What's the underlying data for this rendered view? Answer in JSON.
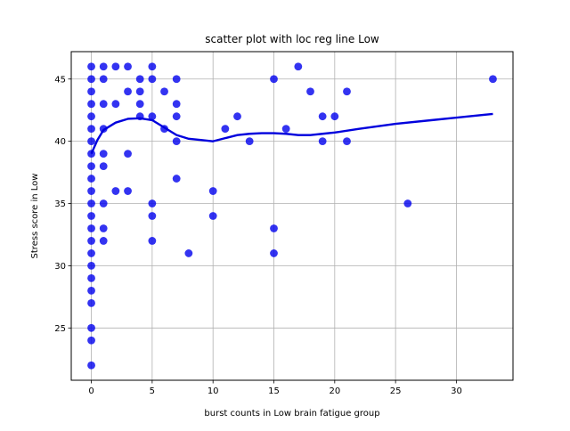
{
  "chart_data": {
    "type": "scatter",
    "title": "scatter plot with loc reg line Low",
    "xlabel": "burst counts in Low brain fatigue group",
    "ylabel": "Stress score in Low",
    "xlim": [
      -1.65,
      34.65
    ],
    "ylim": [
      20.8,
      47.2
    ],
    "xticks": [
      0,
      5,
      10,
      15,
      20,
      25,
      30
    ],
    "yticks": [
      25,
      30,
      35,
      40,
      45
    ],
    "grid": true,
    "colors": {
      "points": "#0000ee",
      "line": "#0000dd",
      "grid": "#b0b0b0"
    },
    "points": [
      [
        0,
        22
      ],
      [
        0,
        24
      ],
      [
        0,
        25
      ],
      [
        0,
        27
      ],
      [
        0,
        28
      ],
      [
        0,
        29
      ],
      [
        0,
        30
      ],
      [
        0,
        31
      ],
      [
        0,
        32
      ],
      [
        0,
        33
      ],
      [
        0,
        34
      ],
      [
        0,
        35
      ],
      [
        0,
        36
      ],
      [
        0,
        37
      ],
      [
        0,
        38
      ],
      [
        0,
        39
      ],
      [
        0,
        40
      ],
      [
        0,
        41
      ],
      [
        0,
        42
      ],
      [
        0,
        43
      ],
      [
        0,
        44
      ],
      [
        0,
        45
      ],
      [
        0,
        46
      ],
      [
        1,
        32
      ],
      [
        1,
        33
      ],
      [
        1,
        35
      ],
      [
        1,
        38
      ],
      [
        1,
        39
      ],
      [
        1,
        41
      ],
      [
        1,
        43
      ],
      [
        1,
        45
      ],
      [
        1,
        46
      ],
      [
        2,
        36
      ],
      [
        2,
        43
      ],
      [
        2,
        46
      ],
      [
        3,
        36
      ],
      [
        3,
        39
      ],
      [
        3,
        44
      ],
      [
        3,
        46
      ],
      [
        4,
        42
      ],
      [
        4,
        43
      ],
      [
        4,
        44
      ],
      [
        4,
        45
      ],
      [
        5,
        32
      ],
      [
        5,
        34
      ],
      [
        5,
        35
      ],
      [
        5,
        42
      ],
      [
        5,
        45
      ],
      [
        5,
        46
      ],
      [
        6,
        41
      ],
      [
        6,
        44
      ],
      [
        7,
        37
      ],
      [
        7,
        40
      ],
      [
        7,
        42
      ],
      [
        7,
        43
      ],
      [
        7,
        45
      ],
      [
        8,
        31
      ],
      [
        10,
        34
      ],
      [
        10,
        36
      ],
      [
        11,
        41
      ],
      [
        12,
        42
      ],
      [
        13,
        40
      ],
      [
        15,
        31
      ],
      [
        15,
        33
      ],
      [
        15,
        45
      ],
      [
        16,
        41
      ],
      [
        17,
        46
      ],
      [
        18,
        44
      ],
      [
        19,
        40
      ],
      [
        19,
        42
      ],
      [
        20,
        42
      ],
      [
        21,
        40
      ],
      [
        21,
        44
      ],
      [
        26,
        35
      ],
      [
        33,
        45
      ]
    ],
    "loess_line": [
      [
        0,
        39.0
      ],
      [
        0.5,
        40.1
      ],
      [
        1,
        40.9
      ],
      [
        2,
        41.5
      ],
      [
        3,
        41.8
      ],
      [
        4,
        41.85
      ],
      [
        5,
        41.7
      ],
      [
        6,
        41.1
      ],
      [
        7,
        40.5
      ],
      [
        8,
        40.2
      ],
      [
        9,
        40.1
      ],
      [
        10,
        40.0
      ],
      [
        11,
        40.25
      ],
      [
        12,
        40.5
      ],
      [
        13,
        40.6
      ],
      [
        14,
        40.65
      ],
      [
        15,
        40.65
      ],
      [
        16,
        40.6
      ],
      [
        17,
        40.5
      ],
      [
        18,
        40.5
      ],
      [
        19,
        40.6
      ],
      [
        20,
        40.7
      ],
      [
        22,
        41.0
      ],
      [
        25,
        41.4
      ],
      [
        28,
        41.7
      ],
      [
        31,
        42.0
      ],
      [
        33,
        42.2
      ]
    ]
  }
}
